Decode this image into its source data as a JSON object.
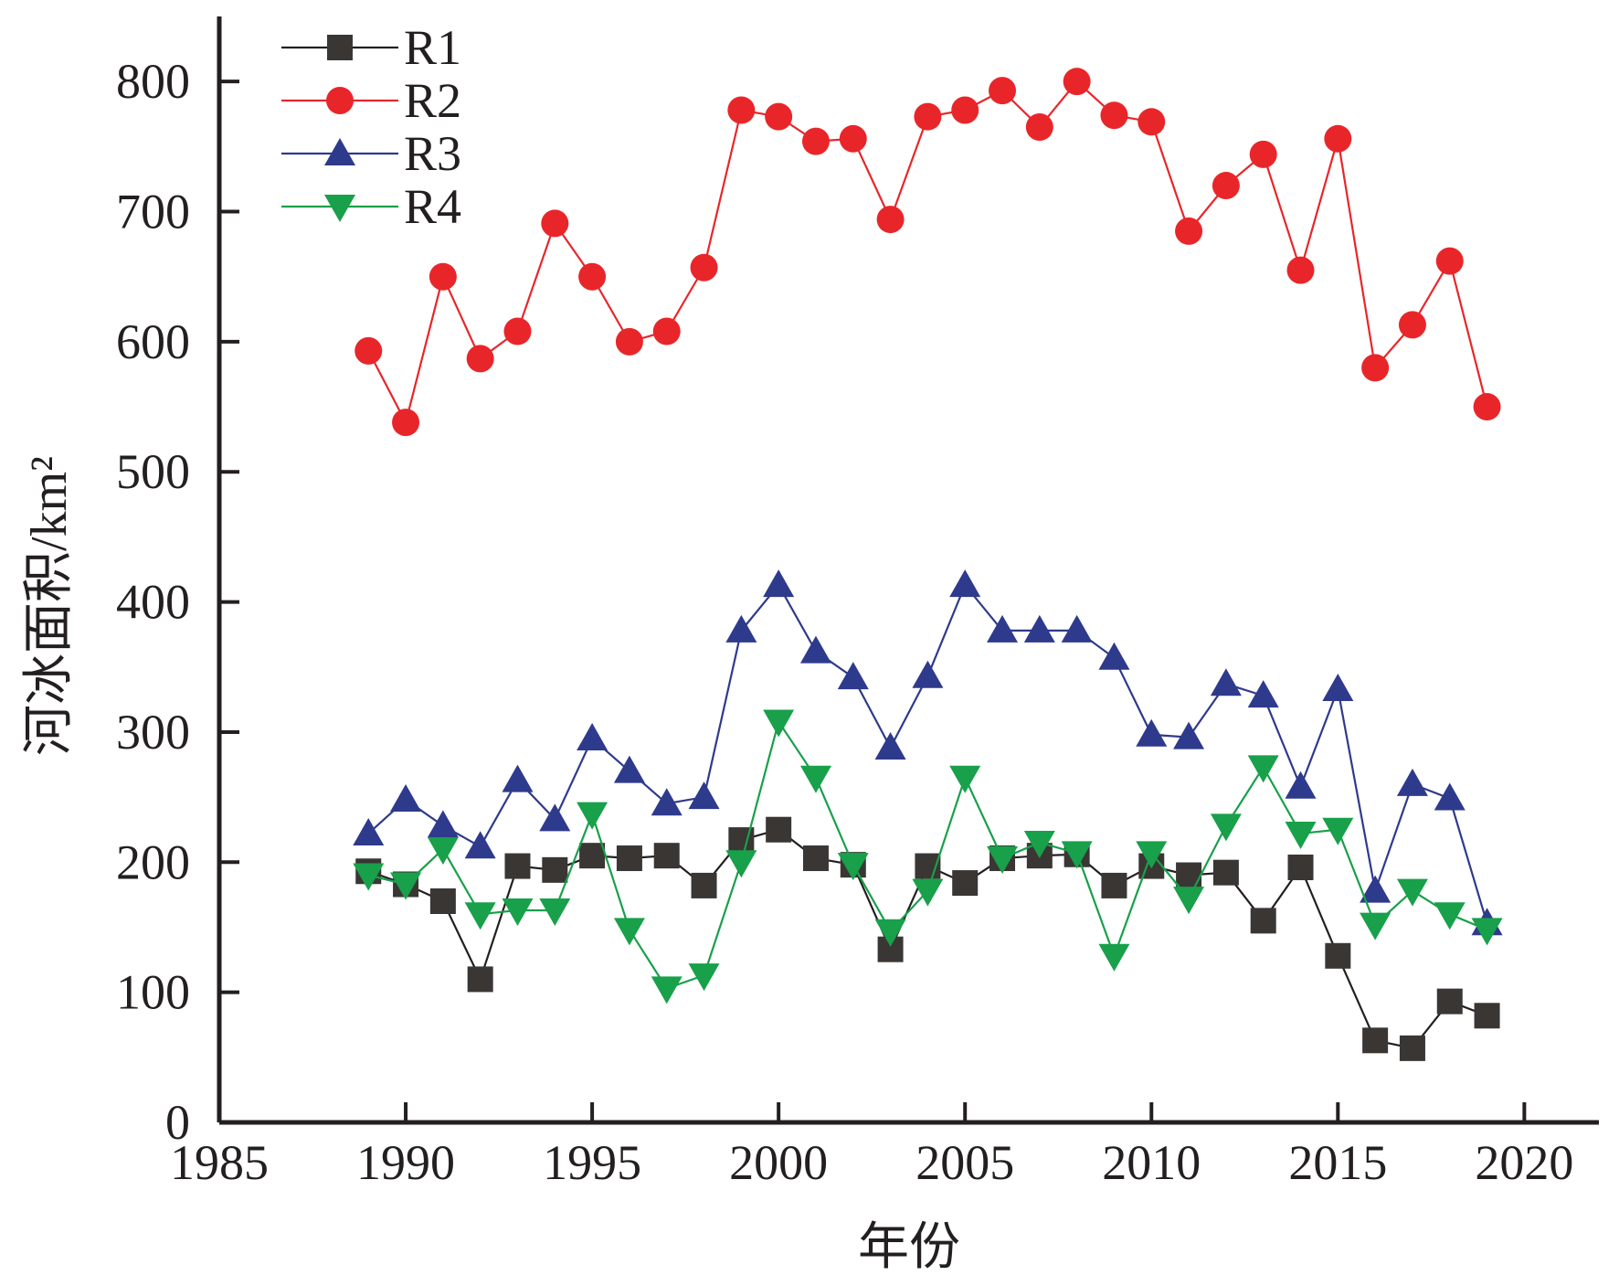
{
  "chart_data": {
    "type": "line",
    "xlabel": "年份",
    "ylabel": "河冰面积/km²",
    "xlim": [
      1985,
      2022
    ],
    "ylim": [
      0,
      850
    ],
    "xticks": [
      1985,
      1990,
      1995,
      2000,
      2005,
      2010,
      2015,
      2020
    ],
    "yticks": [
      0,
      100,
      200,
      300,
      400,
      500,
      600,
      700,
      800
    ],
    "grid": false,
    "legend_position": "top-left",
    "x": [
      1989,
      1990,
      1991,
      1992,
      1993,
      1994,
      1995,
      1996,
      1997,
      1998,
      1999,
      2000,
      2001,
      2002,
      2003,
      2004,
      2005,
      2006,
      2007,
      2008,
      2009,
      2010,
      2011,
      2012,
      2013,
      2014,
      2015,
      2016,
      2017,
      2018,
      2019
    ],
    "series": [
      {
        "name": "R1",
        "color": "#3a3634",
        "line_color": "#231f20",
        "marker": "square",
        "values": [
          193,
          183,
          170,
          110,
          197,
          194,
          205,
          203,
          205,
          182,
          217,
          225,
          203,
          198,
          133,
          197,
          184,
          203,
          205,
          206,
          182,
          197,
          190,
          192,
          155,
          196,
          128,
          63,
          57,
          93,
          82
        ]
      },
      {
        "name": "R2",
        "color": "#e8262a",
        "line_color": "#e8262a",
        "marker": "circle",
        "values": [
          593,
          538,
          650,
          587,
          608,
          691,
          650,
          600,
          608,
          657,
          778,
          773,
          754,
          756,
          694,
          773,
          778,
          793,
          765,
          800,
          774,
          769,
          685,
          720,
          744,
          655,
          756,
          580,
          613,
          662,
          550
        ]
      },
      {
        "name": "R3",
        "color": "#2e3a8c",
        "line_color": "#2e3a8c",
        "marker": "triangle-up",
        "values": [
          222,
          248,
          228,
          212,
          263,
          233,
          295,
          270,
          245,
          250,
          378,
          413,
          362,
          342,
          288,
          343,
          413,
          378,
          378,
          378,
          357,
          298,
          296,
          337,
          328,
          258,
          333,
          178,
          260,
          249,
          153
        ]
      },
      {
        "name": "R4",
        "color": "#18a04a",
        "line_color": "#18a04a",
        "marker": "triangle-down",
        "values": [
          190,
          183,
          210,
          160,
          163,
          163,
          237,
          148,
          103,
          113,
          200,
          308,
          265,
          198,
          147,
          178,
          265,
          203,
          215,
          207,
          128,
          207,
          172,
          228,
          273,
          222,
          225,
          152,
          178,
          160,
          148
        ]
      }
    ]
  }
}
